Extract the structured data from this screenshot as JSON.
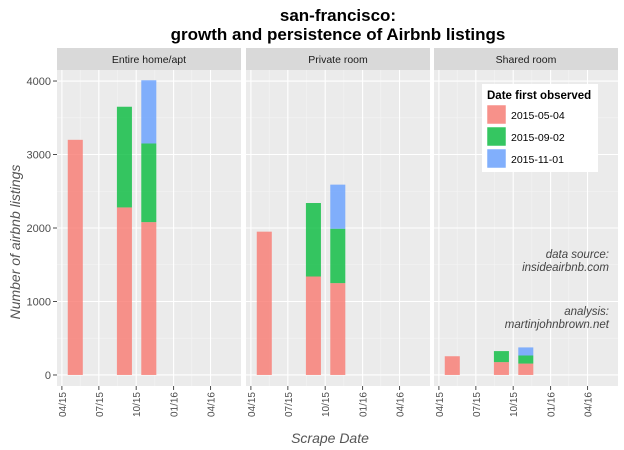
{
  "chart_data": {
    "type": "bar",
    "title": "san-francisco:",
    "subtitle": "growth and persistence of Airbnb listings",
    "xlabel": "Scrape Date",
    "ylabel": "Number of airbnb listings",
    "ylim": [
      -150,
      4150
    ],
    "yticks": [
      0,
      1000,
      2000,
      3000,
      4000
    ],
    "xticks": [
      "04/15",
      "07/15",
      "10/15",
      "01/16",
      "04/16"
    ],
    "x_tick_dates": [
      "2015-04-01",
      "2015-07-01",
      "2015-10-01",
      "2016-01-01",
      "2016-04-01"
    ],
    "xlim": [
      "2015-03-20",
      "2016-06-15"
    ],
    "grid": true,
    "legend": {
      "title": "Date first observed",
      "position": "top-right",
      "entries": [
        "2015-05-04",
        "2015-09-02",
        "2015-11-01"
      ]
    },
    "series": [
      {
        "name": "2015-05-04",
        "color": "#F8766D"
      },
      {
        "name": "2015-09-02",
        "color": "#00BA38"
      },
      {
        "name": "2015-11-01",
        "color": "#619CFF"
      }
    ],
    "panels": [
      {
        "label": "Entire home/apt",
        "bars": [
          {
            "scrape_date": "2015-05-04",
            "values": [
              3200,
              0,
              0
            ]
          },
          {
            "scrape_date": "2015-09-02",
            "values": [
              2280,
              1370,
              0
            ]
          },
          {
            "scrape_date": "2015-11-01",
            "values": [
              2080,
              1070,
              860
            ]
          }
        ]
      },
      {
        "label": "Private room",
        "bars": [
          {
            "scrape_date": "2015-05-04",
            "values": [
              1950,
              0,
              0
            ]
          },
          {
            "scrape_date": "2015-09-02",
            "values": [
              1340,
              1000,
              0
            ]
          },
          {
            "scrape_date": "2015-11-01",
            "values": [
              1250,
              740,
              600
            ]
          }
        ]
      },
      {
        "label": "Shared room",
        "bars": [
          {
            "scrape_date": "2015-05-04",
            "values": [
              255,
              0,
              0
            ]
          },
          {
            "scrape_date": "2015-09-02",
            "values": [
              175,
              150,
              0
            ]
          },
          {
            "scrape_date": "2015-11-01",
            "values": [
              155,
              110,
              110
            ]
          }
        ]
      }
    ],
    "annotations": [
      {
        "lines": [
          "data source:",
          "insideairbnb.com"
        ],
        "panel": "Shared room"
      },
      {
        "lines": [
          "analysis:",
          "martinjohnbrown.net"
        ],
        "panel": "Shared room"
      }
    ]
  }
}
